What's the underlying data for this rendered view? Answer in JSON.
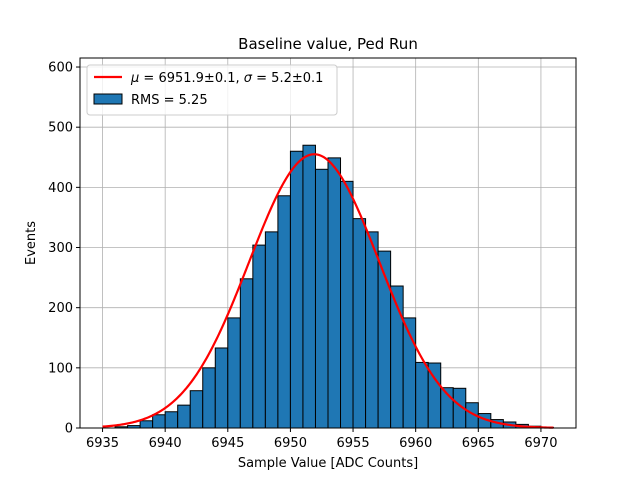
{
  "chart_data": {
    "type": "bar",
    "title": "Baseline value, Ped Run",
    "xlabel": "Sample Value [ADC Counts]",
    "ylabel": "Events",
    "xlim": [
      6933.2,
      6972.8
    ],
    "ylim": [
      0,
      615
    ],
    "xticks": [
      6935,
      6940,
      6945,
      6950,
      6955,
      6960,
      6965,
      6970
    ],
    "yticks": [
      0,
      100,
      200,
      300,
      400,
      500,
      600
    ],
    "grid": true,
    "bin_start": 6935,
    "bin_width": 1,
    "bin_counts": [
      0,
      2,
      4,
      12,
      22,
      27,
      38,
      62,
      100,
      133,
      183,
      248,
      304,
      326,
      386,
      460,
      470,
      430,
      449,
      410,
      348,
      326,
      294,
      236,
      183,
      109,
      108,
      67,
      66,
      42,
      24,
      14,
      10,
      6,
      3,
      1
    ],
    "fit": {
      "mu": 6951.9,
      "sigma": 5.2,
      "amplitude": 455,
      "x_range": [
        6935,
        6971
      ]
    },
    "legend_position": "upper left",
    "legend": [
      {
        "label_prefix": "μ",
        "label_mid": " = 6951.9±0.1, ",
        "label_sigma": "σ",
        "label_suffix": " = 5.2±0.1",
        "color": "#ff0000",
        "kind": "line"
      },
      {
        "label": "RMS = 5.25",
        "color": "#1f77b4",
        "kind": "patch"
      }
    ],
    "colors": {
      "bar_fill": "#1f77b4",
      "bar_edge": "#000000",
      "fit_line": "#ff0000",
      "grid": "#b0b0b0"
    }
  }
}
